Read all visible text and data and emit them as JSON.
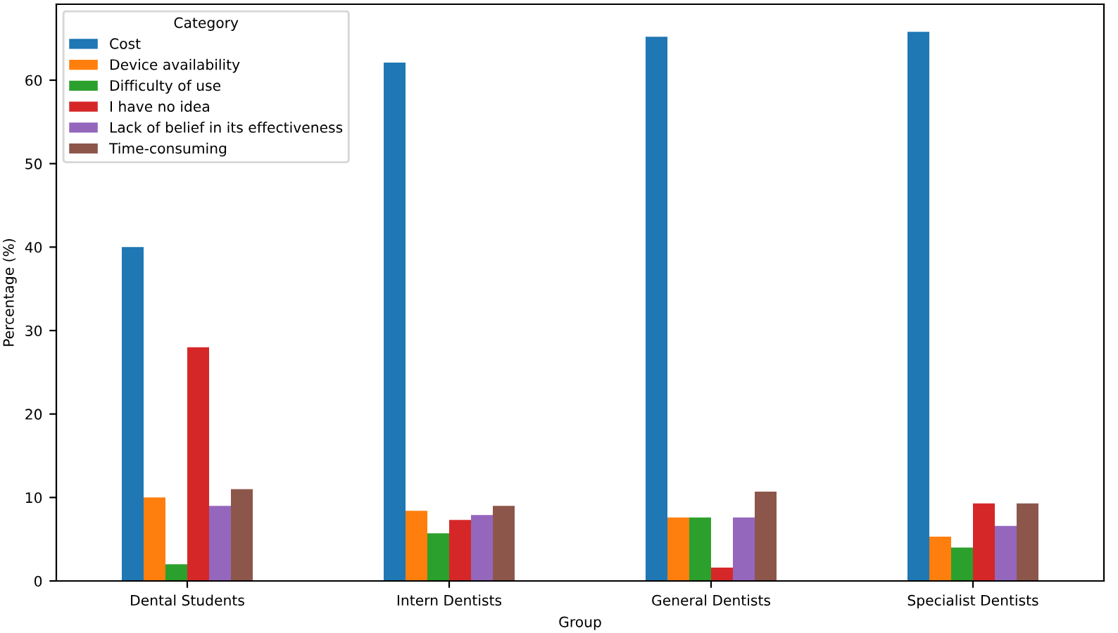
{
  "chart_data": {
    "type": "bar",
    "xlabel": "Group",
    "ylabel": "Percentage (%)",
    "legend_title": "Category",
    "legend": "top left",
    "grid": false,
    "categories": [
      "Dental Students",
      "Intern Dentists",
      "General Dentists",
      "Specialist Dentists"
    ],
    "ylim": [
      0,
      69.1
    ],
    "yticks": [
      0,
      10,
      20,
      30,
      40,
      50,
      60
    ],
    "series": [
      {
        "name": "Cost",
        "color": "#1f77b4",
        "values": [
          40,
          62.1,
          65.2,
          65.8
        ]
      },
      {
        "name": "Device availability",
        "color": "#ff7f0e",
        "values": [
          10,
          8.4,
          7.6,
          5.3
        ]
      },
      {
        "name": "Difficulty of use",
        "color": "#2ca02c",
        "values": [
          2,
          5.7,
          7.6,
          4.0
        ]
      },
      {
        "name": "I have no idea",
        "color": "#d62728",
        "values": [
          28,
          7.3,
          1.6,
          9.3
        ]
      },
      {
        "name": "Lack of belief in its effectiveness",
        "color": "#9467bd",
        "values": [
          9,
          7.9,
          7.6,
          6.6
        ]
      },
      {
        "name": "Time-consuming",
        "color": "#8c564b",
        "values": [
          11,
          9.0,
          10.7,
          9.3
        ]
      }
    ]
  }
}
